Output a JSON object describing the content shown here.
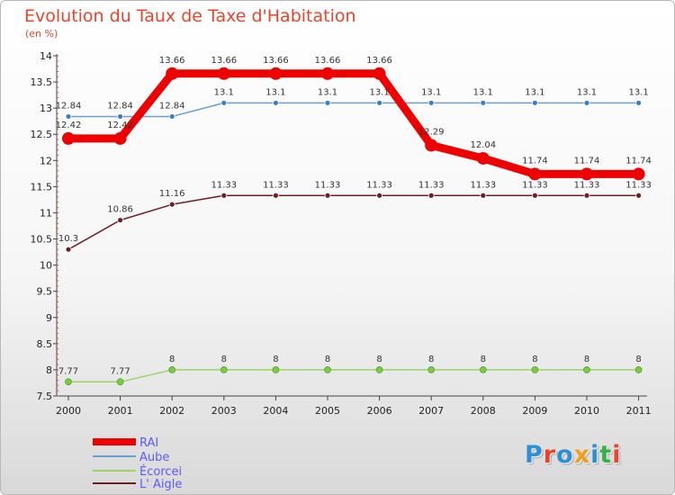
{
  "title": "Evolution du Taux de Taxe d'Habitation",
  "subtitle": "(en %)",
  "logo": {
    "text": "Proxiti",
    "letter_colors": [
      "#2e8fd8",
      "#e8452c",
      "#2e8fd8",
      "#f0a020",
      "#2e8fd8",
      "#38b048",
      "#e8452c"
    ]
  },
  "chart_data": {
    "type": "line",
    "x": [
      "2000",
      "2001",
      "2002",
      "2003",
      "2004",
      "2005",
      "2006",
      "2007",
      "2008",
      "2009",
      "2010",
      "2011"
    ],
    "ylim": [
      7.5,
      14
    ],
    "yticks": [
      "7.5",
      "8",
      "8.5",
      "9",
      "9.5",
      "10",
      "10.5",
      "11",
      "11.5",
      "12",
      "12.5",
      "13",
      "13.5",
      "14"
    ],
    "grid": false,
    "legend_position": "bottom-left",
    "series": [
      {
        "name": "RAI",
        "color": "#ee0000",
        "values": [
          12.42,
          12.42,
          13.66,
          13.66,
          13.66,
          13.66,
          13.66,
          12.29,
          12.04,
          11.74,
          11.74,
          11.74
        ],
        "labels": [
          "12.42",
          "12.42",
          "13.66",
          "13.66",
          "13.66",
          "13.66",
          "13.66",
          "12.29",
          "12.04",
          "11.74",
          "11.74",
          "11.74"
        ]
      },
      {
        "name": "Aube",
        "color": "#6a9fd0",
        "values": [
          12.84,
          12.84,
          12.84,
          13.1,
          13.1,
          13.1,
          13.1,
          13.1,
          13.1,
          13.1,
          13.1,
          13.1
        ],
        "labels": [
          "12.84",
          "12.84",
          "12.84",
          "13.1",
          "13.1",
          "13.1",
          "13.1",
          "13.1",
          "13.1",
          "13.1",
          "13.1",
          "13.1"
        ]
      },
      {
        "name": "Écorcei",
        "color": "#9ad468",
        "values": [
          7.77,
          7.77,
          8,
          8,
          8,
          8,
          8,
          8,
          8,
          8,
          8,
          8
        ],
        "labels": [
          "7.77",
          "7.77",
          "8",
          "8",
          "8",
          "8",
          "8",
          "8",
          "8",
          "8",
          "8",
          "8"
        ]
      },
      {
        "name": "L' Aigle",
        "color": "#6b1f24",
        "values": [
          10.3,
          10.86,
          11.16,
          11.33,
          11.33,
          11.33,
          11.33,
          11.33,
          11.33,
          11.33,
          11.33,
          11.33
        ],
        "labels": [
          "10.3",
          "10.86",
          "11.16",
          "11.33",
          "11.33",
          "11.33",
          "11.33",
          "11.33",
          "11.33",
          "11.33",
          "11.33",
          "11.33"
        ]
      }
    ]
  }
}
